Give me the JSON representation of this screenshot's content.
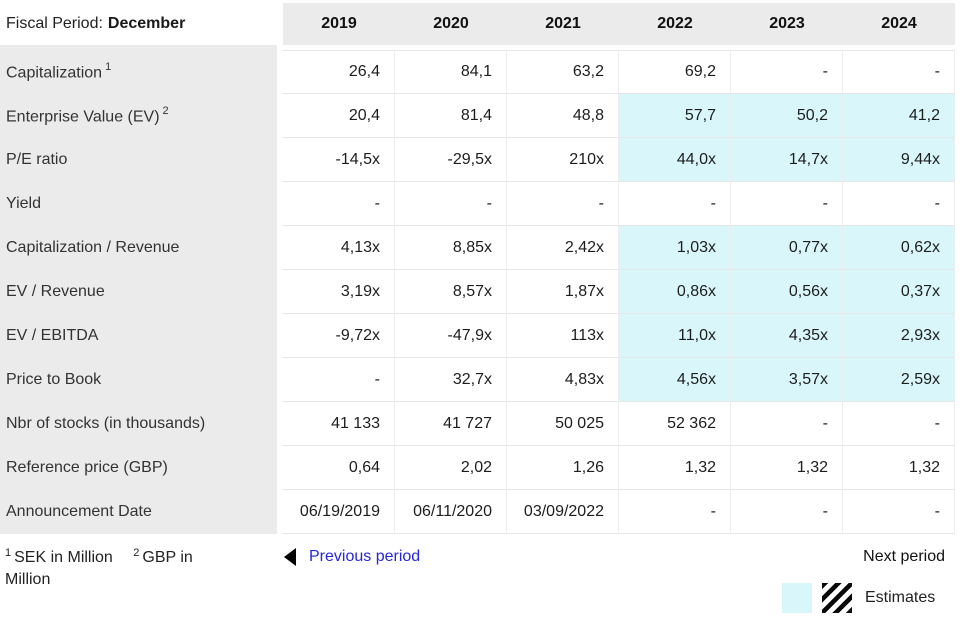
{
  "header": {
    "fiscal_label": "Fiscal Period:",
    "fiscal_value": "December",
    "years": [
      "2019",
      "2020",
      "2021",
      "2022",
      "2023",
      "2024"
    ]
  },
  "table": {
    "rows": [
      {
        "label": "Capitalization",
        "sup": "1",
        "values": [
          "26,4",
          "84,1",
          "63,2",
          "69,2",
          "-",
          "-"
        ],
        "estimates": [
          false,
          false,
          false,
          false,
          false,
          false
        ]
      },
      {
        "label": "Enterprise Value (EV)",
        "sup": "2",
        "values": [
          "20,4",
          "81,4",
          "48,8",
          "57,7",
          "50,2",
          "41,2"
        ],
        "estimates": [
          false,
          false,
          false,
          true,
          true,
          true
        ]
      },
      {
        "label": "P/E ratio",
        "sup": "",
        "values": [
          "-14,5x",
          "-29,5x",
          "210x",
          "44,0x",
          "14,7x",
          "9,44x"
        ],
        "estimates": [
          false,
          false,
          false,
          true,
          true,
          true
        ]
      },
      {
        "label": "Yield",
        "sup": "",
        "values": [
          "-",
          "-",
          "-",
          "-",
          "-",
          "-"
        ],
        "estimates": [
          false,
          false,
          false,
          false,
          false,
          false
        ]
      },
      {
        "label": "Capitalization / Revenue",
        "sup": "",
        "values": [
          "4,13x",
          "8,85x",
          "2,42x",
          "1,03x",
          "0,77x",
          "0,62x"
        ],
        "estimates": [
          false,
          false,
          false,
          true,
          true,
          true
        ]
      },
      {
        "label": "EV / Revenue",
        "sup": "",
        "values": [
          "3,19x",
          "8,57x",
          "1,87x",
          "0,86x",
          "0,56x",
          "0,37x"
        ],
        "estimates": [
          false,
          false,
          false,
          true,
          true,
          true
        ]
      },
      {
        "label": "EV / EBITDA",
        "sup": "",
        "values": [
          "-9,72x",
          "-47,9x",
          "113x",
          "11,0x",
          "4,35x",
          "2,93x"
        ],
        "estimates": [
          false,
          false,
          false,
          true,
          true,
          true
        ]
      },
      {
        "label": "Price to Book",
        "sup": "",
        "values": [
          "-",
          "32,7x",
          "4,83x",
          "4,56x",
          "3,57x",
          "2,59x"
        ],
        "estimates": [
          false,
          false,
          false,
          true,
          true,
          true
        ]
      },
      {
        "label": "Nbr of stocks (in thousands)",
        "sup": "",
        "values": [
          "41 133",
          "41 727",
          "50 025",
          "52 362",
          "-",
          "-"
        ],
        "estimates": [
          false,
          false,
          false,
          false,
          false,
          false
        ]
      },
      {
        "label": "Reference price (GBP)",
        "sup": "",
        "values": [
          "0,64",
          "2,02",
          "1,26",
          "1,32",
          "1,32",
          "1,32"
        ],
        "estimates": [
          false,
          false,
          false,
          false,
          false,
          false
        ]
      },
      {
        "label": "Announcement Date",
        "sup": "",
        "values": [
          "06/19/2019",
          "06/11/2020",
          "03/09/2022",
          "-",
          "-",
          "-"
        ],
        "estimates": [
          false,
          false,
          false,
          false,
          false,
          false
        ]
      }
    ]
  },
  "footer": {
    "footnote1_sup": "1",
    "footnote1_text": "SEK in Million",
    "footnote2_sup": "2",
    "footnote2_text": "GBP in Million",
    "previous_label": "Previous period",
    "next_label": "Next period",
    "estimates_label": "Estimates"
  },
  "colors": {
    "estimate_bg": "#d9f7fa",
    "header_bg": "#ebebeb",
    "link_blue": "#2626dd"
  }
}
